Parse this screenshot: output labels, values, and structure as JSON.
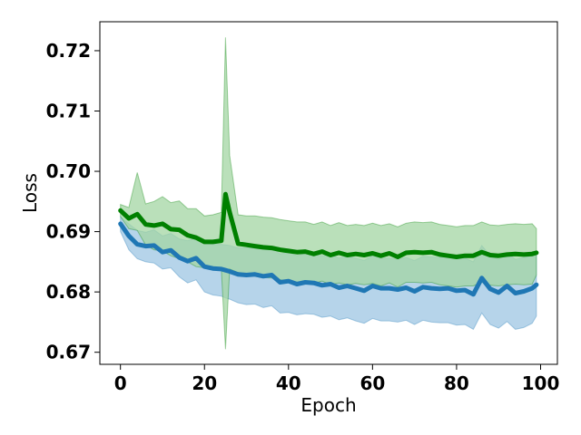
{
  "chart_data": {
    "type": "line",
    "title": "",
    "xlabel": "Epoch",
    "ylabel": "Loss",
    "xlim": [
      -4.9,
      104.0
    ],
    "ylim": [
      0.668,
      0.7248
    ],
    "grid": false,
    "xticks": [
      0,
      20,
      40,
      60,
      80,
      100
    ],
    "xtick_labels": [
      "0",
      "20",
      "40",
      "60",
      "80",
      "100"
    ],
    "yticks": [
      0.67,
      0.68,
      0.69,
      0.7,
      0.71,
      0.72
    ],
    "ytick_labels": [
      "0.67",
      "0.68",
      "0.69",
      "0.70",
      "0.71",
      "0.72"
    ],
    "x": [
      0,
      2,
      4,
      6,
      8,
      10,
      12,
      14,
      16,
      18,
      20,
      22,
      24,
      25,
      26,
      28,
      30,
      32,
      34,
      36,
      38,
      40,
      42,
      44,
      46,
      48,
      50,
      52,
      54,
      56,
      58,
      60,
      62,
      64,
      66,
      68,
      70,
      72,
      74,
      76,
      78,
      80,
      82,
      84,
      86,
      88,
      90,
      92,
      94,
      96,
      98,
      99
    ],
    "series": [
      {
        "color": "#1f77b4",
        "band_color": "#9ec5e3",
        "values": [
          0.6913,
          0.6893,
          0.6879,
          0.6876,
          0.6877,
          0.6866,
          0.6869,
          0.6857,
          0.6851,
          0.6856,
          0.6842,
          0.6839,
          0.6838,
          0.6836,
          0.6834,
          0.6829,
          0.6828,
          0.6829,
          0.6826,
          0.6828,
          0.6816,
          0.6818,
          0.6813,
          0.6816,
          0.6815,
          0.6811,
          0.6813,
          0.6807,
          0.681,
          0.6806,
          0.6802,
          0.681,
          0.6806,
          0.6806,
          0.6804,
          0.6807,
          0.6801,
          0.6808,
          0.6806,
          0.6805,
          0.6806,
          0.6802,
          0.6803,
          0.6796,
          0.6823,
          0.6805,
          0.6799,
          0.681,
          0.6798,
          0.6801,
          0.6806,
          0.6812
        ],
        "lower": [
          0.69,
          0.687,
          0.6855,
          0.685,
          0.6848,
          0.6838,
          0.684,
          0.6825,
          0.6815,
          0.682,
          0.68,
          0.6795,
          0.6793,
          0.679,
          0.6788,
          0.6782,
          0.6779,
          0.678,
          0.6774,
          0.6777,
          0.6765,
          0.6766,
          0.6762,
          0.6764,
          0.6763,
          0.6758,
          0.676,
          0.6754,
          0.6757,
          0.6752,
          0.6748,
          0.6756,
          0.6752,
          0.6752,
          0.675,
          0.6753,
          0.6746,
          0.6753,
          0.675,
          0.6749,
          0.6749,
          0.6745,
          0.6746,
          0.6738,
          0.6765,
          0.6746,
          0.674,
          0.6751,
          0.6738,
          0.6741,
          0.6748,
          0.676
        ],
        "upper": [
          0.6925,
          0.6913,
          0.6902,
          0.6899,
          0.6903,
          0.6893,
          0.6897,
          0.6888,
          0.6885,
          0.689,
          0.6881,
          0.6879,
          0.6879,
          0.6878,
          0.6877,
          0.6873,
          0.6873,
          0.6874,
          0.6873,
          0.6875,
          0.6863,
          0.6866,
          0.686,
          0.6864,
          0.6863,
          0.686,
          0.6862,
          0.6856,
          0.6859,
          0.6856,
          0.6852,
          0.686,
          0.6856,
          0.6856,
          0.6854,
          0.6857,
          0.6852,
          0.6859,
          0.6858,
          0.6857,
          0.6859,
          0.6855,
          0.6856,
          0.685,
          0.6877,
          0.686,
          0.6854,
          0.6865,
          0.6854,
          0.6857,
          0.686,
          0.6862
        ]
      },
      {
        "color": "#008000",
        "band_color": "#a3d6a3",
        "values": [
          0.6935,
          0.6922,
          0.6929,
          0.6912,
          0.691,
          0.6913,
          0.6904,
          0.6903,
          0.6894,
          0.689,
          0.6883,
          0.6883,
          0.6885,
          0.6962,
          0.6932,
          0.688,
          0.6878,
          0.6876,
          0.6874,
          0.6873,
          0.687,
          0.6868,
          0.6866,
          0.6867,
          0.6863,
          0.6867,
          0.6861,
          0.6865,
          0.6861,
          0.6863,
          0.6861,
          0.6864,
          0.686,
          0.6864,
          0.6858,
          0.6865,
          0.6866,
          0.6865,
          0.6866,
          0.6862,
          0.686,
          0.6858,
          0.686,
          0.686,
          0.6866,
          0.6861,
          0.686,
          0.6862,
          0.6863,
          0.6862,
          0.6863,
          0.6865
        ],
        "lower": [
          0.6925,
          0.6905,
          0.6902,
          0.6878,
          0.687,
          0.6868,
          0.686,
          0.6855,
          0.685,
          0.6842,
          0.684,
          0.6838,
          0.6838,
          0.6705,
          0.6838,
          0.6832,
          0.683,
          0.6826,
          0.6824,
          0.6823,
          0.682,
          0.6818,
          0.6816,
          0.6818,
          0.6814,
          0.6818,
          0.6812,
          0.6815,
          0.6812,
          0.6814,
          0.6812,
          0.6814,
          0.681,
          0.6815,
          0.6808,
          0.6816,
          0.6816,
          0.6815,
          0.6816,
          0.6812,
          0.681,
          0.6808,
          0.681,
          0.681,
          0.6816,
          0.6811,
          0.681,
          0.6812,
          0.6813,
          0.6812,
          0.6813,
          0.6828
        ],
        "upper": [
          0.6945,
          0.694,
          0.6998,
          0.6946,
          0.695,
          0.6958,
          0.6948,
          0.6951,
          0.6938,
          0.6938,
          0.6926,
          0.6928,
          0.6932,
          0.7222,
          0.7026,
          0.6928,
          0.6926,
          0.6926,
          0.6924,
          0.6923,
          0.692,
          0.6918,
          0.6916,
          0.6916,
          0.6912,
          0.6916,
          0.691,
          0.6915,
          0.691,
          0.6912,
          0.691,
          0.6914,
          0.691,
          0.6913,
          0.6908,
          0.6914,
          0.6916,
          0.6915,
          0.6916,
          0.6912,
          0.691,
          0.6908,
          0.691,
          0.691,
          0.6916,
          0.6911,
          0.691,
          0.6912,
          0.6913,
          0.6912,
          0.6913,
          0.6905
        ]
      }
    ]
  }
}
